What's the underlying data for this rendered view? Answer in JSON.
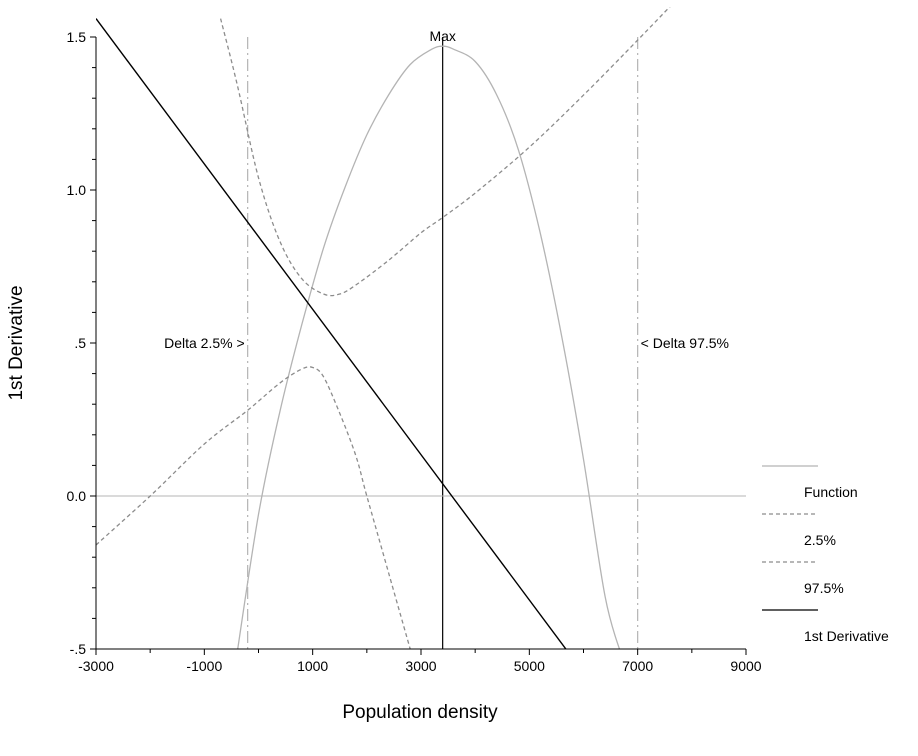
{
  "chart_data": {
    "type": "line",
    "title": "",
    "xlabel": "Population density",
    "ylabel": "1st Derivative",
    "xlim": [
      -3000,
      9000
    ],
    "ylim": [
      -0.5,
      1.5
    ],
    "x_ticks": [
      {
        "value": -3000,
        "label": "-3000"
      },
      {
        "value": -1000,
        "label": "-1000"
      },
      {
        "value": 1000,
        "label": "1000"
      },
      {
        "value": 3000,
        "label": "3000"
      },
      {
        "value": 5000,
        "label": "5000"
      },
      {
        "value": 7000,
        "label": "7000"
      },
      {
        "value": 9000,
        "label": "9000"
      }
    ],
    "y_ticks": [
      {
        "value": -0.5,
        "label": "-.5"
      },
      {
        "value": 0.0,
        "label": "0.0"
      },
      {
        "value": 0.5,
        "label": ".5"
      },
      {
        "value": 1.0,
        "label": "1.0"
      },
      {
        "value": 1.5,
        "label": "1.5"
      }
    ],
    "grid": false,
    "legend_position": "right",
    "zero_line": true,
    "series": [
      {
        "name": "Function",
        "style": "solid",
        "color": "#b4b4b4",
        "x": [
          -400,
          0,
          400,
          800,
          1200,
          1600,
          2000,
          2400,
          2800,
          3200,
          3400,
          3600,
          4000,
          4400,
          4800,
          5200,
          5600,
          6000,
          6400,
          6700
        ],
        "y": [
          -0.52,
          -0.06,
          0.28,
          0.56,
          0.81,
          1.01,
          1.18,
          1.31,
          1.41,
          1.46,
          1.47,
          1.46,
          1.42,
          1.31,
          1.13,
          0.86,
          0.52,
          0.12,
          -0.33,
          -0.52
        ]
      },
      {
        "name": "2.5%",
        "style": "dashed",
        "color": "#8c8c8c",
        "x": [
          -3000,
          -2000,
          -1000,
          -200,
          400,
          800,
          1000,
          1200,
          1500,
          1800,
          2000,
          2400,
          2800
        ],
        "y": [
          -0.16,
          0.0,
          0.17,
          0.28,
          0.37,
          0.415,
          0.42,
          0.39,
          0.27,
          0.13,
          0.0,
          -0.25,
          -0.5
        ]
      },
      {
        "name": "97.5%",
        "style": "dashed",
        "color": "#8c8c8c",
        "x": [
          -700,
          -400,
          0,
          400,
          800,
          1200,
          1500,
          1800,
          2400,
          3000,
          3400,
          4000,
          5000,
          6000,
          7000,
          7600
        ],
        "y": [
          1.56,
          1.35,
          1.04,
          0.83,
          0.71,
          0.66,
          0.66,
          0.69,
          0.77,
          0.86,
          0.91,
          0.99,
          1.14,
          1.31,
          1.49,
          1.6
        ]
      },
      {
        "name": "1st Derivative",
        "style": "solid",
        "color": "#000000",
        "x": [
          -3000,
          5800
        ],
        "y": [
          1.56,
          -0.53
        ]
      }
    ],
    "reference_lines": [
      {
        "axis": "x",
        "value": -200,
        "label": "Delta 2.5% >",
        "style": "dashdot",
        "color": "#b4b4b4",
        "label_side": "left"
      },
      {
        "axis": "x",
        "value": 7000,
        "label": "< Delta 97.5%",
        "style": "dashdot",
        "color": "#b4b4b4",
        "label_side": "right"
      },
      {
        "axis": "x",
        "value": 3400,
        "label": "Max",
        "style": "solid",
        "color": "#000000",
        "label_side": "top"
      }
    ]
  }
}
